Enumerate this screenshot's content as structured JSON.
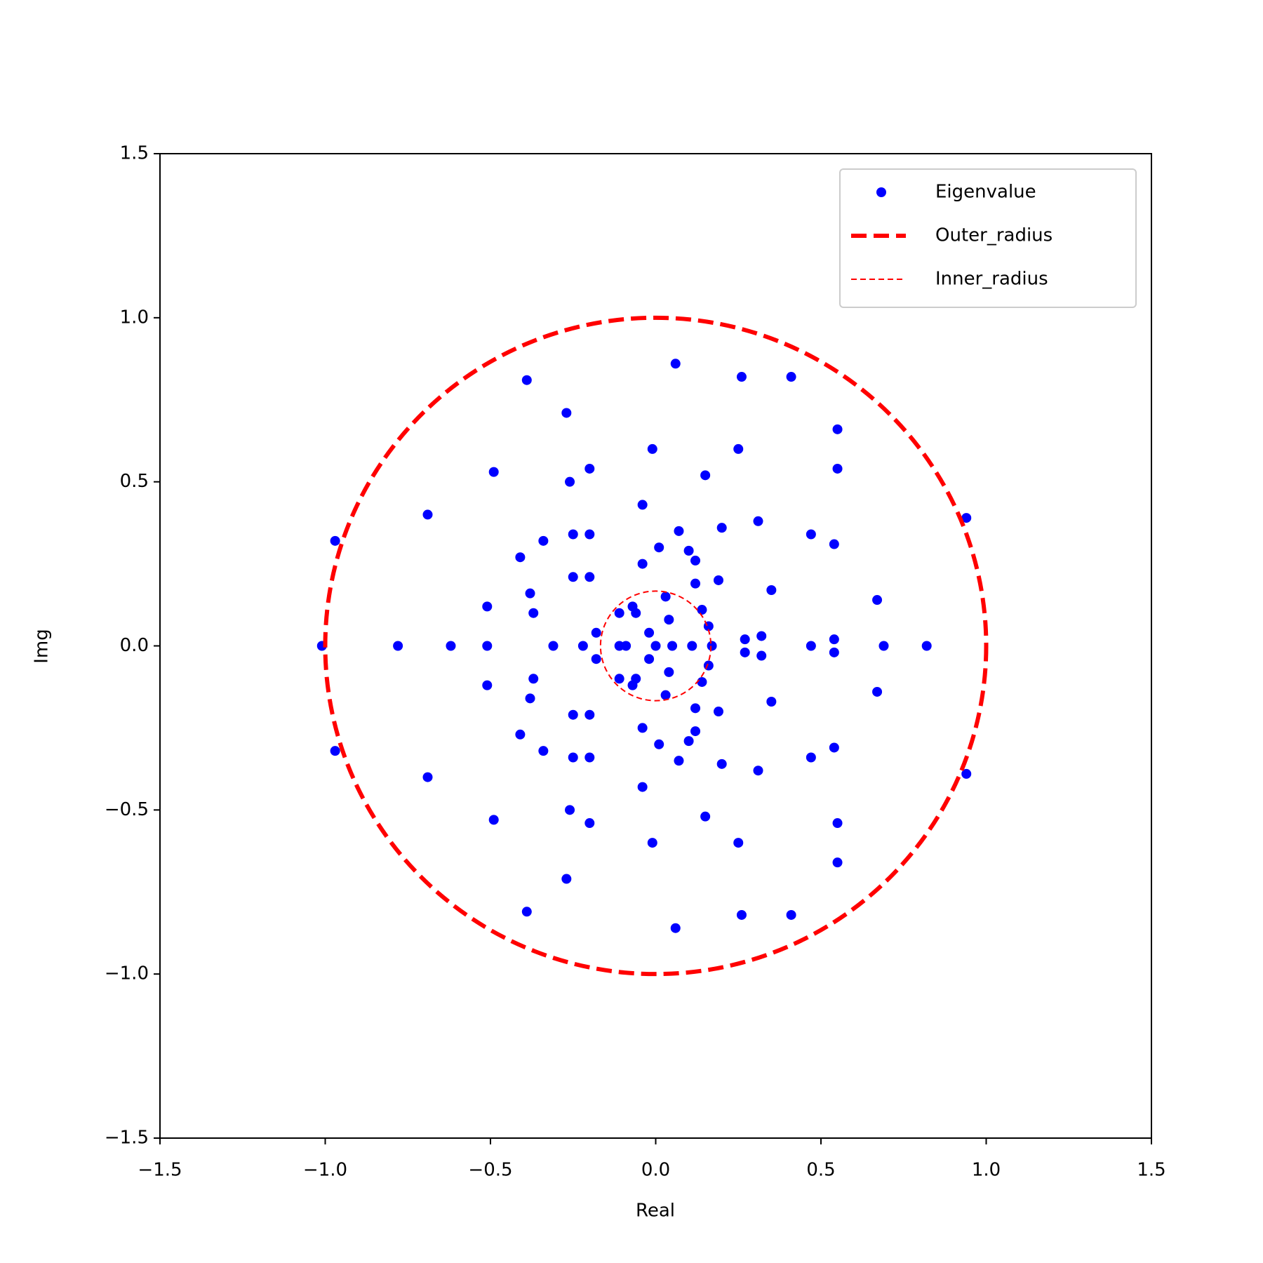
{
  "chart_data": {
    "type": "scatter",
    "xlabel": "Real",
    "ylabel": "Img",
    "xlim": [
      -1.5,
      1.5
    ],
    "ylim": [
      -1.5,
      1.5
    ],
    "xticks": [
      {
        "value": -1.5,
        "label": "−1.5"
      },
      {
        "value": -1,
        "label": "−1.0"
      },
      {
        "value": -0.5,
        "label": "−0.5"
      },
      {
        "value": 0,
        "label": "0.0"
      },
      0.5,
      {
        "value": 1,
        "label": "1.0"
      },
      1.5
    ],
    "yticks": [
      {
        "value": -1.5,
        "label": "−1.5"
      },
      {
        "value": -1,
        "label": "−1.0"
      },
      {
        "value": -0.5,
        "label": "−0.5"
      },
      {
        "value": 0,
        "label": "0.0"
      },
      0.5,
      {
        "value": 1,
        "label": "1.0"
      },
      1.5
    ],
    "legend": "upper right",
    "series": [
      {
        "name": "Eigenvalue",
        "color": "#0000ff",
        "x": [
          0.06,
          0.26,
          0.41,
          -0.39,
          -0.27,
          0.55,
          -0.01,
          0.25,
          -0.49,
          -0.2,
          0.55,
          0.15,
          -0.26,
          -0.04,
          -0.69,
          0.94,
          0.31,
          -0.97,
          -0.34,
          -0.25,
          -0.2,
          0.2,
          0.47,
          0.54,
          0.07,
          0.01,
          0.1,
          0.12,
          -0.41,
          -0.04,
          -0.25,
          -0.2,
          0.19,
          0.12,
          0.35,
          -0.38,
          -0.51,
          0.67,
          0.03,
          -0.37,
          -0.11,
          -0.07,
          -0.06,
          0.14,
          0.16,
          0.04,
          -0.18,
          -0.02,
          0.27,
          0.32,
          0.54,
          0.06,
          0.26,
          0.41,
          -0.39,
          -0.27,
          0.55,
          -0.01,
          0.25,
          -0.49,
          -0.2,
          0.55,
          0.15,
          -0.26,
          -0.04,
          -0.69,
          0.94,
          0.31,
          -0.97,
          -0.34,
          -0.25,
          -0.2,
          0.2,
          0.47,
          0.54,
          0.07,
          0.01,
          0.1,
          0.12,
          -0.41,
          -0.04,
          -0.25,
          -0.2,
          0.19,
          0.12,
          0.35,
          -0.38,
          -0.51,
          0.67,
          0.03,
          -0.37,
          -0.11,
          -0.07,
          -0.06,
          0.14,
          0.16,
          0.04,
          -0.18,
          -0.02,
          0.27,
          0.32,
          0.54,
          -1.01,
          -0.78,
          -0.62,
          -0.51,
          -0.31,
          -0.22,
          -0.11,
          -0.09,
          0,
          0.05,
          0.11,
          0.17,
          0.47,
          0.69,
          0.82
        ],
        "y": [
          0.86,
          0.82,
          0.82,
          0.81,
          0.71,
          0.66,
          0.6,
          0.6,
          0.53,
          0.54,
          0.54,
          0.52,
          0.5,
          0.43,
          0.4,
          0.39,
          0.38,
          0.32,
          0.32,
          0.34,
          0.34,
          0.36,
          0.34,
          0.31,
          0.35,
          0.3,
          0.29,
          0.26,
          0.27,
          0.25,
          0.21,
          0.21,
          0.2,
          0.19,
          0.17,
          0.16,
          0.12,
          0.14,
          0.15,
          0.1,
          0.1,
          0.12,
          0.1,
          0.11,
          0.06,
          0.08,
          0.04,
          0.04,
          0.02,
          0.03,
          0.02,
          -0.86,
          -0.82,
          -0.82,
          -0.81,
          -0.71,
          -0.66,
          -0.6,
          -0.6,
          -0.53,
          -0.54,
          -0.54,
          -0.52,
          -0.5,
          -0.43,
          -0.4,
          -0.39,
          -0.38,
          -0.32,
          -0.32,
          -0.34,
          -0.34,
          -0.36,
          -0.34,
          -0.31,
          -0.35,
          -0.3,
          -0.29,
          -0.26,
          -0.27,
          -0.25,
          -0.21,
          -0.21,
          -0.2,
          -0.19,
          -0.17,
          -0.16,
          -0.12,
          -0.14,
          -0.15,
          -0.1,
          -0.1,
          -0.12,
          -0.1,
          -0.11,
          -0.06,
          -0.08,
          -0.04,
          -0.04,
          -0.02,
          -0.03,
          -0.02,
          0,
          0,
          0,
          0,
          0,
          0,
          0,
          0,
          0,
          0,
          0,
          0,
          0,
          0,
          0
        ]
      },
      {
        "name": "Outer_radius",
        "color": "#ff0000",
        "radius": 1
      },
      {
        "name": "Inner_radius",
        "color": "#ff0000",
        "radius": 0.167
      }
    ]
  }
}
